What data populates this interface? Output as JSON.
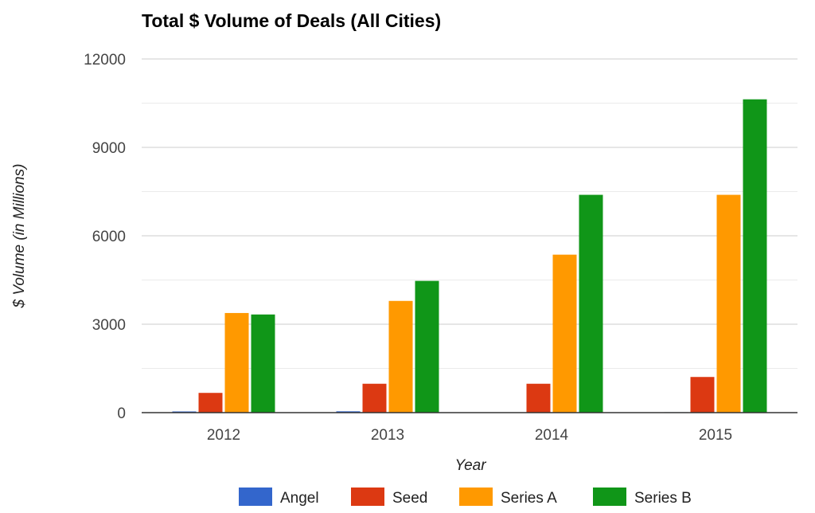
{
  "chart_data": {
    "type": "bar",
    "title": "Total $ Volume of Deals (All Cities)",
    "xlabel": "Year",
    "ylabel": "$ Volume (in Millions)",
    "categories": [
      "2012",
      "2013",
      "2014",
      "2015"
    ],
    "ylim": [
      0,
      12000
    ],
    "yticks": [
      "0",
      "3000",
      "6000",
      "9000",
      "12000"
    ],
    "grid": true,
    "legend": "bottom",
    "series": [
      {
        "name": "Angel",
        "color": "#3366cc",
        "values": [
          40,
          45,
          10,
          15
        ]
      },
      {
        "name": "Seed",
        "color": "#dc3912",
        "values": [
          670,
          980,
          980,
          1210
        ]
      },
      {
        "name": "Series A",
        "color": "#ff9900",
        "values": [
          3380,
          3790,
          5360,
          7390
        ]
      },
      {
        "name": "Series B",
        "color": "#109618",
        "values": [
          3330,
          4470,
          7390,
          10630
        ]
      }
    ]
  }
}
